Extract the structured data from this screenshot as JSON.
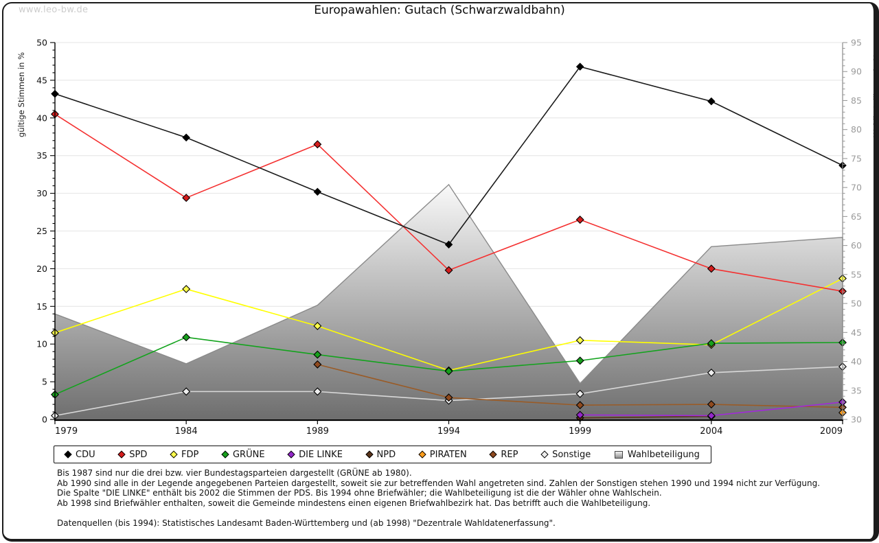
{
  "page": {
    "watermark": "www.leo-bw.de",
    "title": "Europawahlen: Gutach (Schwarzwaldbahn)"
  },
  "chart_data": {
    "type": "line",
    "title": "Europawahlen: Gutach (Schwarzwaldbahn)",
    "x": [
      1979,
      1984,
      1989,
      1994,
      1999,
      2004,
      2009
    ],
    "left_axis": {
      "label": "gültige Stimmen in %",
      "min": 0,
      "max": 50,
      "tick_step": 5,
      "minor_step": 1
    },
    "right_axis": {
      "label": "Wahlbeteiligung in %",
      "min": 30,
      "max": 95,
      "tick_step": 5,
      "minor_step": 1
    },
    "grid": true,
    "legend_position": "bottom",
    "series": [
      {
        "name": "CDU",
        "axis": "left",
        "color": "#1a1a1a",
        "marker": "#000000",
        "values": [
          43.2,
          37.4,
          30.2,
          23.2,
          46.8,
          42.2,
          33.7
        ]
      },
      {
        "name": "SPD",
        "axis": "left",
        "color": "#f43030",
        "marker": "#d41c1c",
        "values": [
          40.5,
          29.4,
          36.5,
          19.8,
          26.5,
          20.0,
          17.0
        ]
      },
      {
        "name": "FDP",
        "axis": "left",
        "color": "#ffff00",
        "marker": "#ffff4d",
        "values": [
          11.5,
          17.3,
          12.4,
          6.5,
          10.5,
          9.9,
          18.7
        ]
      },
      {
        "name": "GRÜNE",
        "axis": "left",
        "color": "#12a31c",
        "marker": "#17a01c",
        "values": [
          3.3,
          10.9,
          8.6,
          6.4,
          7.8,
          10.1,
          10.2
        ]
      },
      {
        "name": "DIE LINKE",
        "axis": "left",
        "color": "#a228dd",
        "marker": "#9327c9",
        "values": [
          null,
          null,
          null,
          null,
          0.6,
          0.5,
          2.3
        ]
      },
      {
        "name": "NPD",
        "axis": "left",
        "color": "#59331a",
        "marker": "#59331a",
        "values": [
          null,
          null,
          null,
          null,
          0.2,
          0.4,
          null
        ]
      },
      {
        "name": "PIRATEN",
        "axis": "left",
        "color": "#ff9d1c",
        "marker": "#ff9d1c",
        "values": [
          null,
          null,
          null,
          null,
          null,
          null,
          0.9
        ]
      },
      {
        "name": "REP",
        "axis": "left",
        "color": "#9a5b26",
        "marker": "#8f4a1f",
        "values": [
          null,
          null,
          7.3,
          2.9,
          1.9,
          2.0,
          1.6
        ]
      },
      {
        "name": "Sonstige",
        "axis": "left",
        "color": "#d9d9d9",
        "marker": "#ededed",
        "values": [
          0.5,
          3.7,
          3.7,
          2.5,
          3.4,
          6.2,
          7.0
        ]
      }
    ],
    "area_series": {
      "name": "Wahlbeteiligung",
      "axis": "right",
      "fill_top": "#ffffff",
      "fill_bottom": "#6e6e6e",
      "stroke": "#8a8a8a",
      "values": [
        48.2,
        39.6,
        49.7,
        70.5,
        36.2,
        59.8,
        61.4
      ]
    }
  },
  "footnotes": {
    "lines": [
      "Bis 1987 sind nur die drei bzw. vier Bundestagsparteien dargestellt (GRÜNE ab 1980).",
      "Ab 1990 sind alle in der Legende angegebenen Parteien dargestellt, soweit sie zur betreffenden Wahl angetreten sind. Zahlen der Sonstigen stehen 1990 und 1994 nicht zur Verfügung.",
      "Die Spalte \"DIE LINKE\" enthält bis 2002 die Stimmen der PDS. Bis 1994 ohne Briefwähler; die Wahlbeteiligung ist die der Wähler ohne Wahlschein.",
      "Ab 1998 sind Briefwähler enthalten, soweit die Gemeinde mindestens einen eigenen Briefwahlbezirk hat. Das betrifft auch die Wahlbeteiligung."
    ],
    "source": "Datenquellen (bis 1994): Statistisches Landesamt Baden-Württemberg und (ab 1998) \"Dezentrale Wahldatenerfassung\"."
  }
}
